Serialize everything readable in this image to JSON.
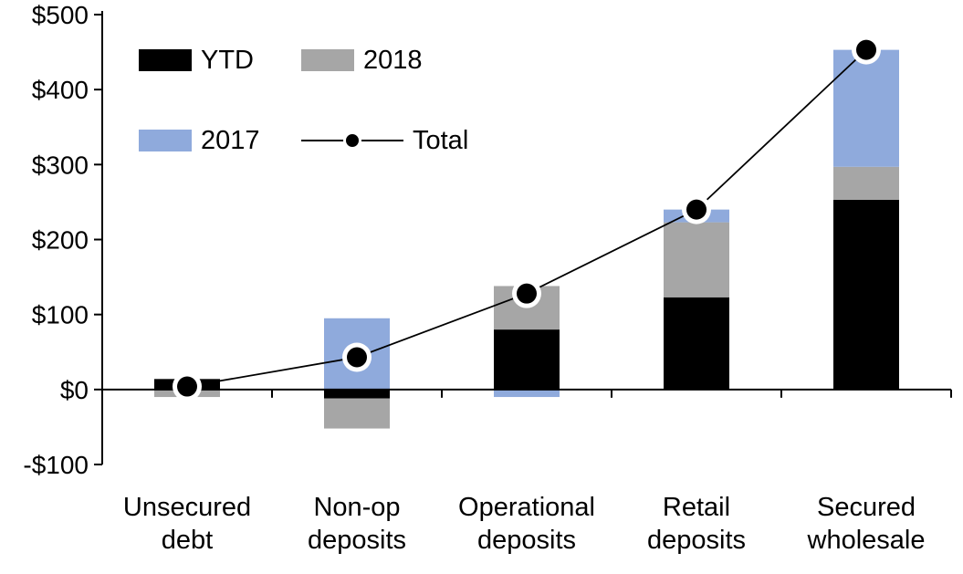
{
  "chart_data": {
    "type": "bar",
    "subtype": "stacked-bar-with-total-line",
    "title": "",
    "xlabel": "",
    "ylabel": "",
    "grid": false,
    "categories": [
      "Unsecured\ndebt",
      "Non-op\ndeposits",
      "Operational\ndeposits",
      "Retail\ndeposits",
      "Secured\nwholesale"
    ],
    "series": [
      {
        "name": "YTD",
        "color": "#000000",
        "values": [
          14,
          -12,
          80,
          123,
          253
        ]
      },
      {
        "name": "2018",
        "color": "#a6a6a6",
        "values": [
          -10,
          -40,
          58,
          100,
          44
        ]
      },
      {
        "name": "2017",
        "color": "#8faadc",
        "values": [
          0,
          95,
          -10,
          17,
          156
        ]
      }
    ],
    "line": {
      "name": "Total",
      "color": "#000000",
      "values": [
        4,
        43,
        128,
        240,
        453
      ]
    },
    "y_axis": {
      "min": -100,
      "max": 500,
      "ticks": [
        {
          "value": 500,
          "label": "$500"
        },
        {
          "value": 400,
          "label": "$400"
        },
        {
          "value": 300,
          "label": "$300"
        },
        {
          "value": 200,
          "label": "$200"
        },
        {
          "value": 100,
          "label": "$100"
        },
        {
          "value": 0,
          "label": "$0"
        },
        {
          "value": -100,
          "label": "-$100"
        }
      ]
    },
    "legend": {
      "position": "top-left-inside-plot",
      "order": [
        "YTD",
        "2018",
        "2017",
        "Total"
      ]
    }
  },
  "colors": {
    "background": "#ffffff",
    "axis": "#000000",
    "marker_fill": "#000000",
    "marker_halo": "#ffffff"
  }
}
